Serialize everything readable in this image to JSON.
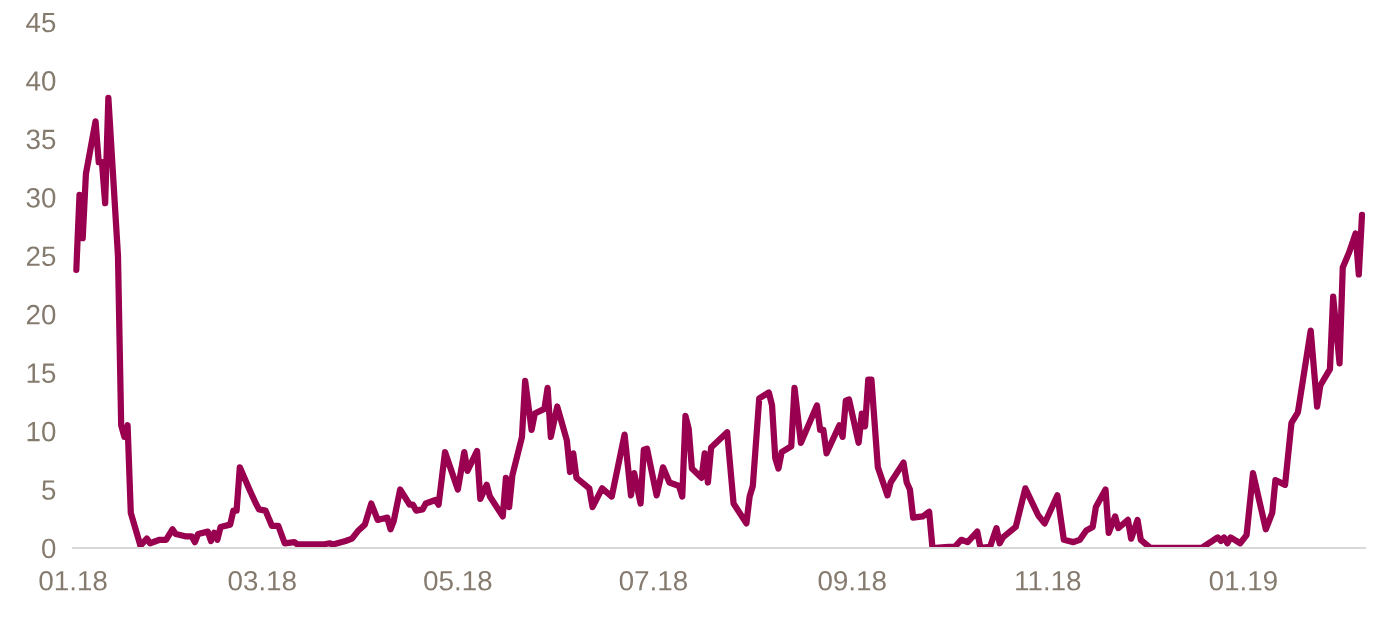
{
  "chart_data": {
    "type": "line",
    "x": [
      "2018-01-02",
      "2018-01-03",
      "2018-01-04",
      "2018-01-05",
      "2018-01-08",
      "2018-01-09",
      "2018-01-10",
      "2018-01-11",
      "2018-01-12",
      "2018-01-15",
      "2018-01-16",
      "2018-01-17",
      "2018-01-18",
      "2018-01-19",
      "2018-01-22",
      "2018-01-24",
      "2018-01-25",
      "2018-01-28",
      "2018-01-30",
      "2018-02-01",
      "2018-02-02",
      "2018-02-05",
      "2018-02-07",
      "2018-02-08",
      "2018-02-09",
      "2018-02-12",
      "2018-02-13",
      "2018-02-14",
      "2018-02-15",
      "2018-02-16",
      "2018-02-19",
      "2018-02-20",
      "2018-02-21",
      "2018-02-22",
      "2018-02-25",
      "2018-02-27",
      "2018-02-28",
      "2018-03-02",
      "2018-03-04",
      "2018-03-06",
      "2018-03-08",
      "2018-03-11",
      "2018-03-12",
      "2018-03-20",
      "2018-03-22",
      "2018-03-23",
      "2018-03-27",
      "2018-03-29",
      "2018-03-31",
      "2018-04-02",
      "2018-04-04",
      "2018-04-06",
      "2018-04-09",
      "2018-04-10",
      "2018-04-11",
      "2018-04-13",
      "2018-04-16",
      "2018-04-17",
      "2018-04-18",
      "2018-04-20",
      "2018-04-21",
      "2018-04-24",
      "2018-04-25",
      "2018-04-27",
      "2018-05-01",
      "2018-05-03",
      "2018-05-04",
      "2018-05-07",
      "2018-05-08",
      "2018-05-10",
      "2018-05-11",
      "2018-05-15",
      "2018-05-16",
      "2018-05-17",
      "2018-05-18",
      "2018-05-21",
      "2018-05-22",
      "2018-05-24",
      "2018-05-25",
      "2018-05-28",
      "2018-05-29",
      "2018-05-30",
      "2018-06-01",
      "2018-06-04",
      "2018-06-05",
      "2018-06-06",
      "2018-06-07",
      "2018-06-11",
      "2018-06-12",
      "2018-06-15",
      "2018-06-18",
      "2018-06-22",
      "2018-06-24",
      "2018-06-25",
      "2018-06-27",
      "2018-06-28",
      "2018-06-29",
      "2018-07-02",
      "2018-07-04",
      "2018-07-06",
      "2018-07-09",
      "2018-07-10",
      "2018-07-11",
      "2018-07-12",
      "2018-07-13",
      "2018-07-16",
      "2018-07-17",
      "2018-07-18",
      "2018-07-19",
      "2018-07-24",
      "2018-07-26",
      "2018-07-30",
      "2018-07-31",
      "2018-08-01",
      "2018-08-03",
      "2018-08-06",
      "2018-08-07",
      "2018-08-08",
      "2018-08-09",
      "2018-08-10",
      "2018-08-13",
      "2018-08-14",
      "2018-08-16",
      "2018-08-21",
      "2018-08-22",
      "2018-08-23",
      "2018-08-24",
      "2018-08-28",
      "2018-08-29",
      "2018-08-30",
      "2018-08-31",
      "2018-09-03",
      "2018-09-04",
      "2018-09-05",
      "2018-09-06",
      "2018-09-07",
      "2018-09-09",
      "2018-09-12",
      "2018-09-13",
      "2018-09-17",
      "2018-09-18",
      "2018-09-19",
      "2018-09-20",
      "2018-09-23",
      "2018-09-25",
      "2018-09-26",
      "2018-09-27",
      "2018-10-01",
      "2018-10-03",
      "2018-10-05",
      "2018-10-07",
      "2018-10-10",
      "2018-10-11",
      "2018-10-14",
      "2018-10-16",
      "2018-10-17",
      "2018-10-18",
      "2018-10-22",
      "2018-10-25",
      "2018-10-29",
      "2018-10-31",
      "2018-11-04",
      "2018-11-06",
      "2018-11-09",
      "2018-11-11",
      "2018-11-13",
      "2018-11-15",
      "2018-11-16",
      "2018-11-19",
      "2018-11-20",
      "2018-11-22",
      "2018-11-23",
      "2018-11-26",
      "2018-11-27",
      "2018-11-29",
      "2018-11-30",
      "2018-12-03",
      "2018-12-19",
      "2018-12-24",
      "2018-12-25",
      "2018-12-26",
      "2018-12-27",
      "2018-12-28",
      "2018-12-31",
      "2019-01-02",
      "2019-01-04",
      "2019-01-08",
      "2019-01-10",
      "2019-01-11",
      "2019-01-14",
      "2019-01-16",
      "2019-01-18",
      "2019-01-22",
      "2019-01-24",
      "2019-01-25",
      "2019-01-28",
      "2019-01-29",
      "2019-01-31",
      "2019-02-01",
      "2019-02-03",
      "2019-02-05",
      "2019-02-06",
      "2019-02-07"
    ],
    "series": [
      {
        "color": "#990050",
        "values": [
          23.8,
          30.2,
          26.5,
          32,
          36.5,
          33,
          33,
          29.5,
          38.5,
          25,
          10.5,
          9.5,
          10.5,
          3,
          0.2,
          0.8,
          0.4,
          0.7,
          0.7,
          1.6,
          1.2,
          1.0,
          1.0,
          0.5,
          1.2,
          1.4,
          0.6,
          1.3,
          0.7,
          1.8,
          2.0,
          3.2,
          3.2,
          6.9,
          5.0,
          3.8,
          3.3,
          3.2,
          1.9,
          1.9,
          0.4,
          0.5,
          0.3,
          0.3,
          0.4,
          0.3,
          0.6,
          0.8,
          1.5,
          2.0,
          3.8,
          2.4,
          2.6,
          1.6,
          2.3,
          5.0,
          3.7,
          3.7,
          3.2,
          3.3,
          3.8,
          4.1,
          3.7,
          8.2,
          5.0,
          8.2,
          6.6,
          8.3,
          4.2,
          5.4,
          4.4,
          2.7,
          6.0,
          3.5,
          6.2,
          9.5,
          14.3,
          10.1,
          11.5,
          11.9,
          13.7,
          9.5,
          12.1,
          9.2,
          6.5,
          8.1,
          6.0,
          5.1,
          3.5,
          5.1,
          4.4,
          9.7,
          4.5,
          6.4,
          3.8,
          8.4,
          8.5,
          4.5,
          6.9,
          5.6,
          5.3,
          4.4,
          11.3,
          10.2,
          6.8,
          6.0,
          8.1,
          5.6,
          8.6,
          9.9,
          3.8,
          2.1,
          4.4,
          5.3,
          12.8,
          13.3,
          12.2,
          7.7,
          6.8,
          8.2,
          8.7,
          13.7,
          9.0,
          12.2,
          10.1,
          10.1,
          8.1,
          10.5,
          9.5,
          12.6,
          12.7,
          9.0,
          11.5,
          10.4,
          14.4,
          14.4,
          6.9,
          4.5,
          5.6,
          7.3,
          5.6,
          5.0,
          2.6,
          2.7,
          3.1,
          0.1,
          0,
          0.1,
          0.1,
          0.7,
          0.5,
          1.4,
          0,
          0.1,
          1.7,
          0.4,
          0.9,
          1.8,
          5.1,
          2.8,
          2.1,
          4.5,
          0.7,
          0.5,
          0.7,
          1.5,
          1.8,
          3.5,
          5.0,
          1.3,
          2.7,
          1.7,
          2.4,
          0.8,
          2.4,
          0.7,
          0,
          0,
          0.9,
          0.6,
          0.9,
          0.4,
          0.9,
          0.4,
          1.1,
          6.4,
          1.6,
          3.0,
          5.8,
          5.4,
          10.7,
          11.6,
          18.6,
          12.1,
          13.9,
          15.3,
          21.5,
          15.8,
          24.0,
          25.3,
          26.9,
          23.4,
          28.5
        ]
      }
    ],
    "xlim": [
      "2018-01-01",
      "2019-02-08"
    ],
    "xticks": [
      {
        "value": "2018-01-01",
        "label": "01.18"
      },
      {
        "value": "2018-03-01",
        "label": "03.18"
      },
      {
        "value": "2018-05-01",
        "label": "05.18"
      },
      {
        "value": "2018-07-01",
        "label": "07.18"
      },
      {
        "value": "2018-09-01",
        "label": "09.18"
      },
      {
        "value": "2018-11-01",
        "label": "11.18"
      },
      {
        "value": "2019-01-01",
        "label": "01.19"
      }
    ],
    "ylim": [
      0,
      45
    ],
    "yticks": [
      0,
      5,
      10,
      15,
      20,
      25,
      30,
      35,
      40,
      45
    ]
  }
}
